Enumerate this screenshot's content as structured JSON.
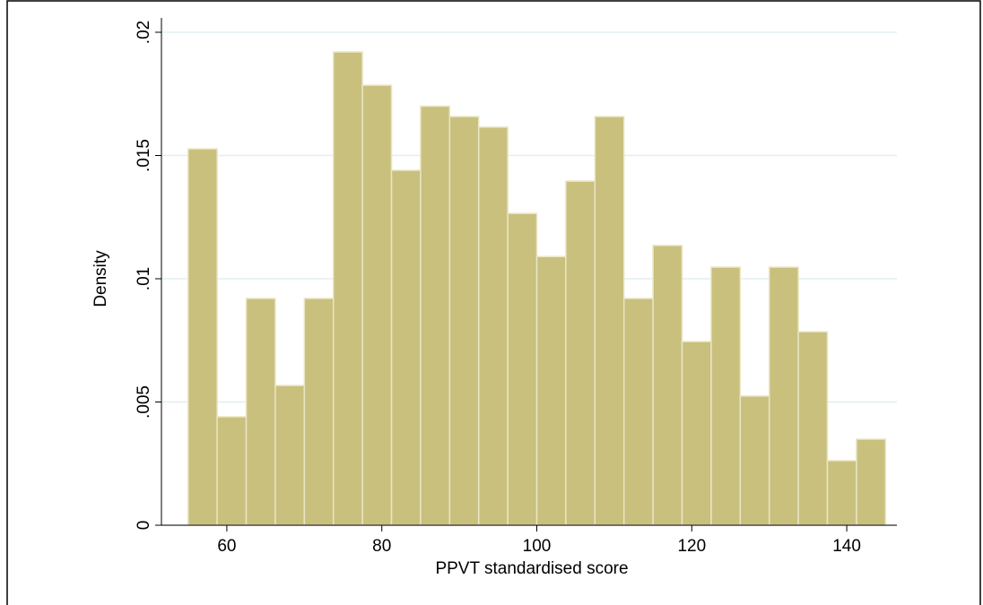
{
  "chart_data": {
    "type": "histogram",
    "x_label": "PPVT standardised score",
    "y_label": "Density",
    "bins": [
      55,
      58.75,
      62.5,
      66.25,
      70,
      73.75,
      77.5,
      81.25,
      85,
      88.75,
      92.5,
      96.25,
      100,
      103.75,
      107.5,
      111.25,
      115,
      118.75,
      122.5,
      126.25,
      130,
      133.75,
      137.5,
      141.25,
      145
    ],
    "values": [
      0.01527,
      0.0044,
      0.0092,
      0.00567,
      0.0092,
      0.0192,
      0.01785,
      0.0144,
      0.017,
      0.01658,
      0.01615,
      0.01265,
      0.0109,
      0.01396,
      0.01658,
      0.0092,
      0.01135,
      0.00745,
      0.01047,
      0.00524,
      0.01047,
      0.00785,
      0.00262,
      0.00349
    ],
    "color": "#c9c07e",
    "xlim": [
      51.56,
      146.47
    ],
    "ylim": [
      0,
      0.02
    ],
    "xticks": [
      60,
      80,
      100,
      120,
      140
    ],
    "yticks": [
      0,
      {
        "value": 0.005,
        "label": ".005"
      },
      {
        "value": 0.01,
        "label": ".01"
      },
      {
        "value": 0.015,
        "label": ".015"
      },
      {
        "value": 0.02,
        "label": ".02"
      }
    ],
    "grid": true
  }
}
